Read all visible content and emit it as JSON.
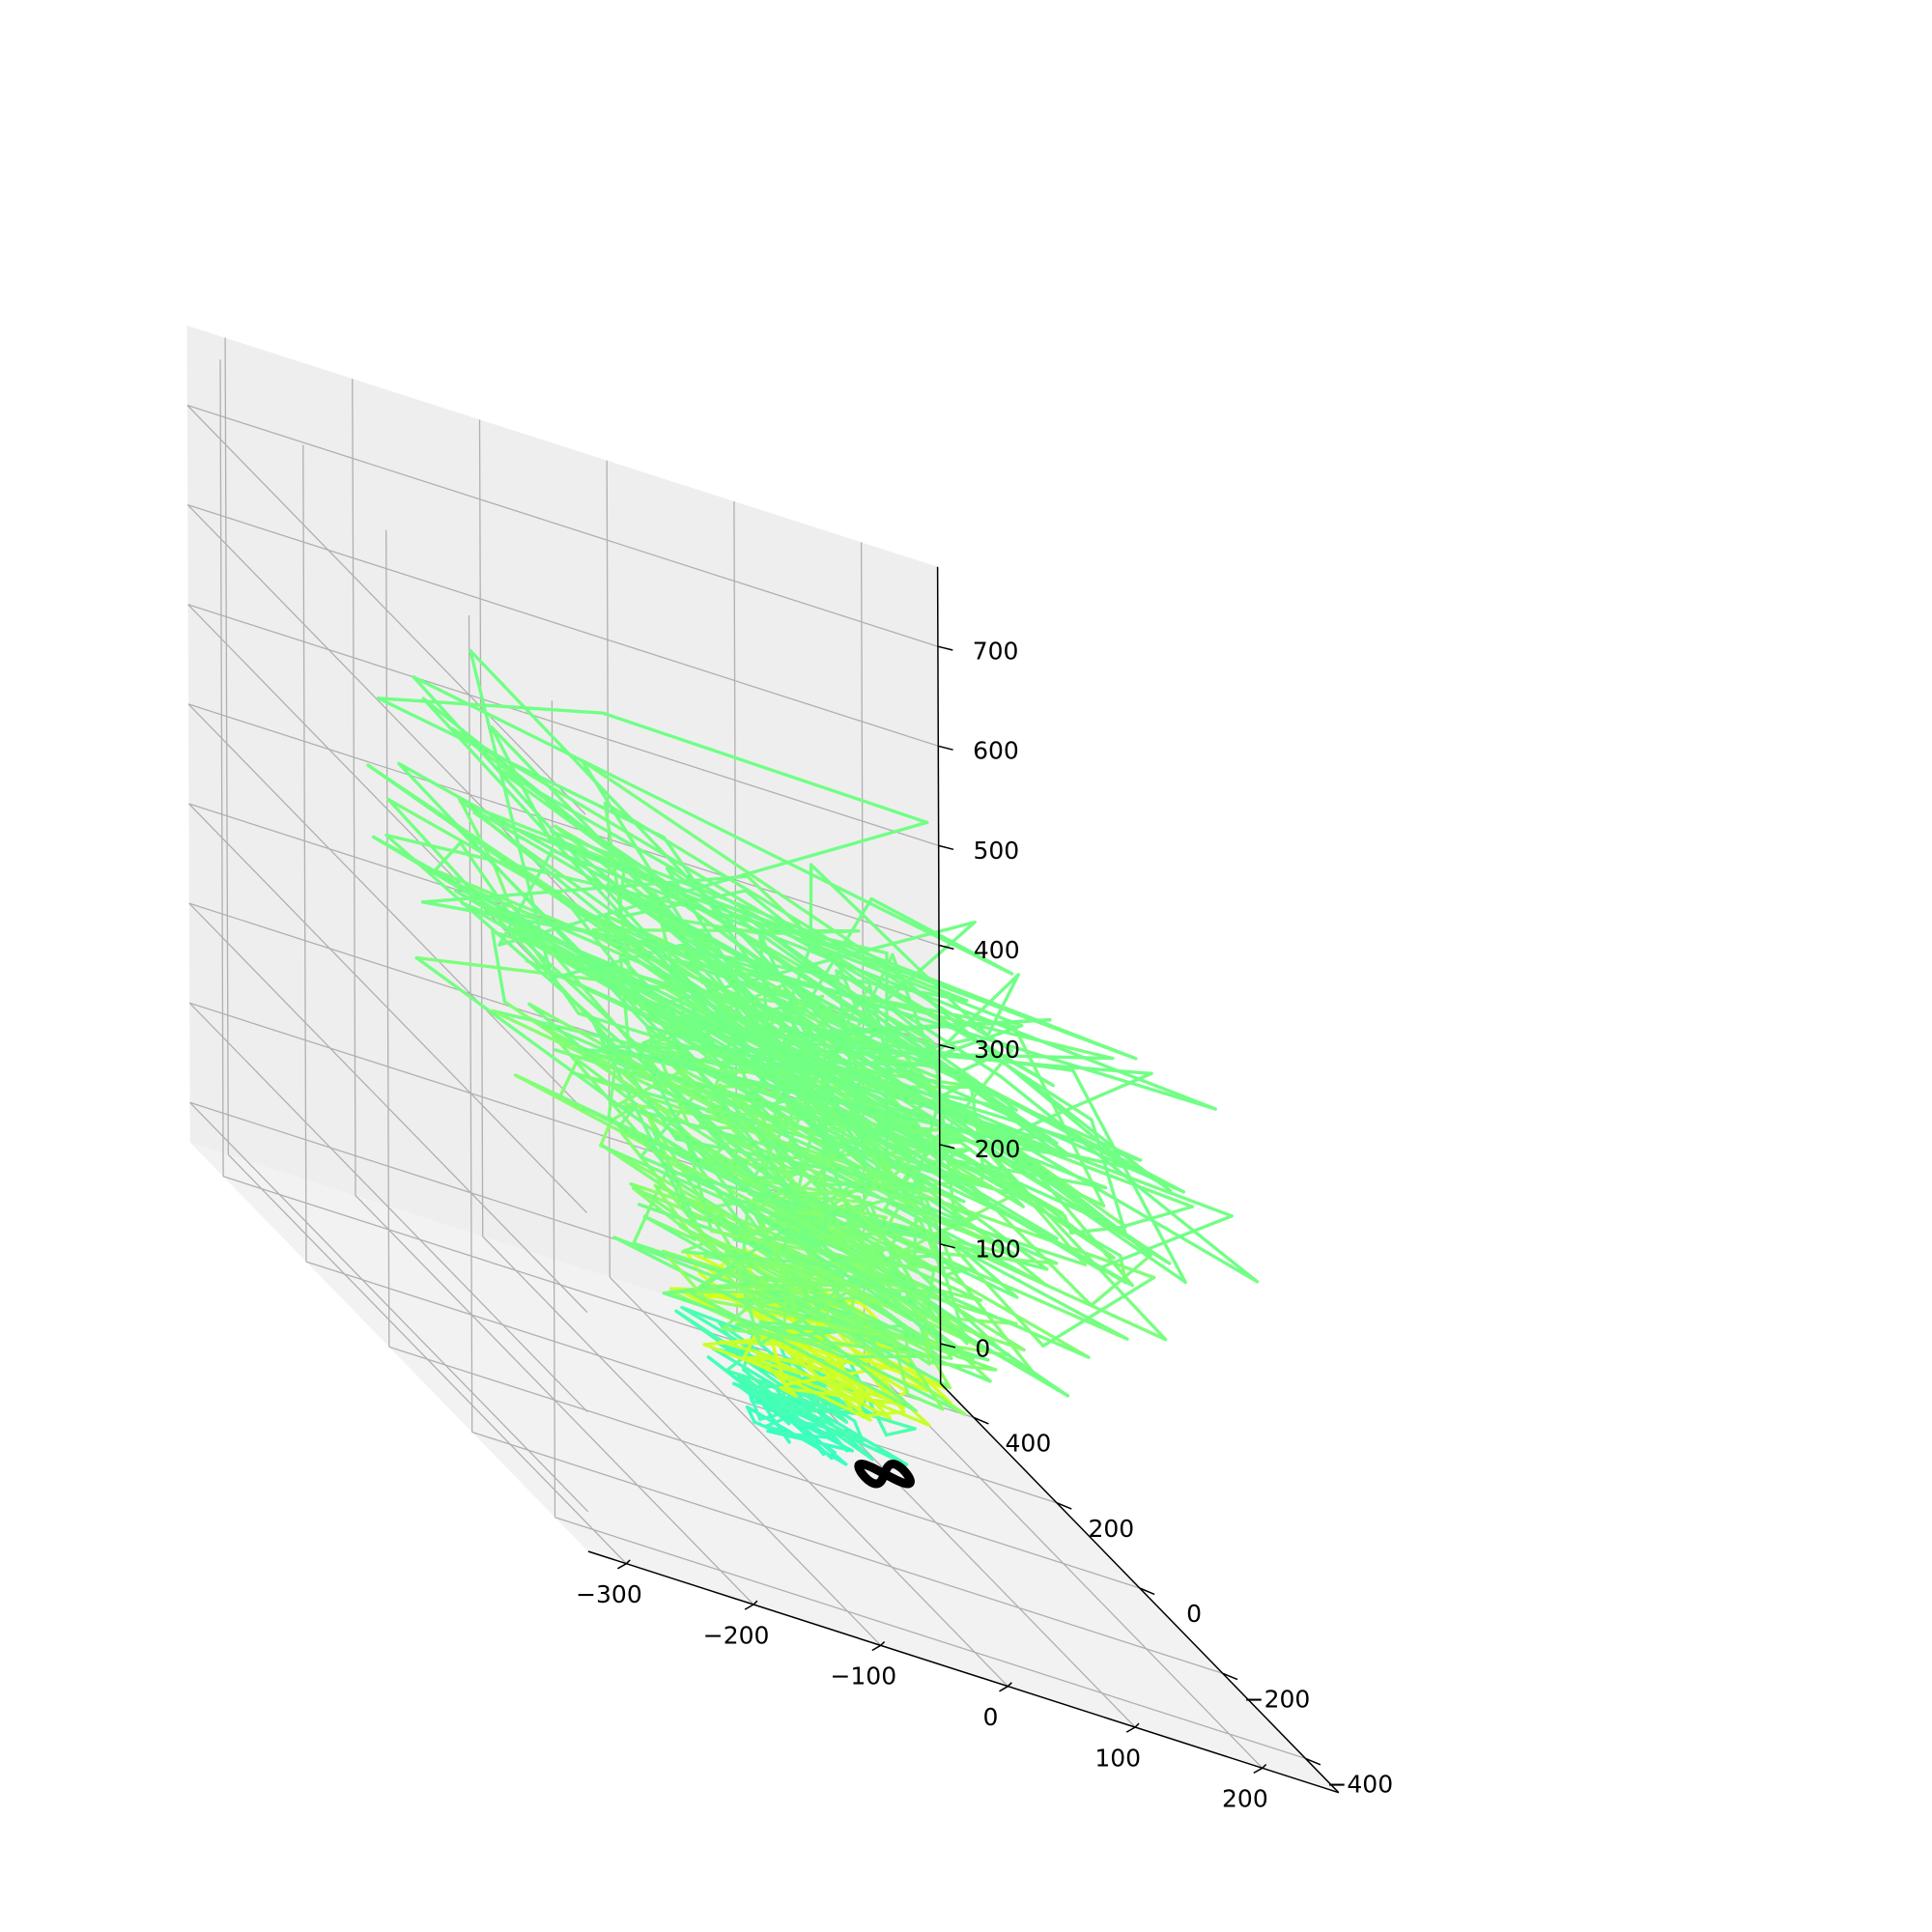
{
  "chart_data": {
    "type": "line3d",
    "title": "",
    "xlabel": "",
    "ylabel": "",
    "zlabel": "",
    "grid": true,
    "xlim": [
      -330,
      260
    ],
    "ylim": [
      -480,
      480
    ],
    "zlim": [
      -40,
      780
    ],
    "x_ticks": [
      -300,
      -200,
      -100,
      0,
      100,
      200
    ],
    "x_tick_labels": [
      "−300",
      "−200",
      "−100",
      "0",
      "100",
      "200"
    ],
    "y_ticks": [
      -400,
      -200,
      0,
      200,
      400
    ],
    "y_tick_labels": [
      "−400",
      "−200",
      "0",
      "200",
      "400"
    ],
    "z_ticks": [
      0,
      100,
      200,
      300,
      400,
      500,
      600,
      700
    ],
    "z_tick_labels": [
      "0",
      "100",
      "200",
      "300",
      "400",
      "500",
      "600",
      "700"
    ],
    "pane_colors": {
      "left": "#f7f7f7",
      "back": "#eeeeee",
      "floor": "#f2f2f2"
    },
    "series": [
      {
        "style": "trajectory",
        "colormap": [
          "#2bffd2",
          "#58ff9e",
          "#9cff58",
          "#d6ff1e"
        ],
        "points_count": 700,
        "approx_extent": {
          "x": [
            -300,
            260
          ],
          "y": [
            -450,
            450
          ],
          "z": [
            0,
            720
          ]
        }
      },
      {
        "style": "attractor-core",
        "color": "#000000",
        "approx_center": [
          40,
          -60,
          10
        ]
      }
    ]
  }
}
